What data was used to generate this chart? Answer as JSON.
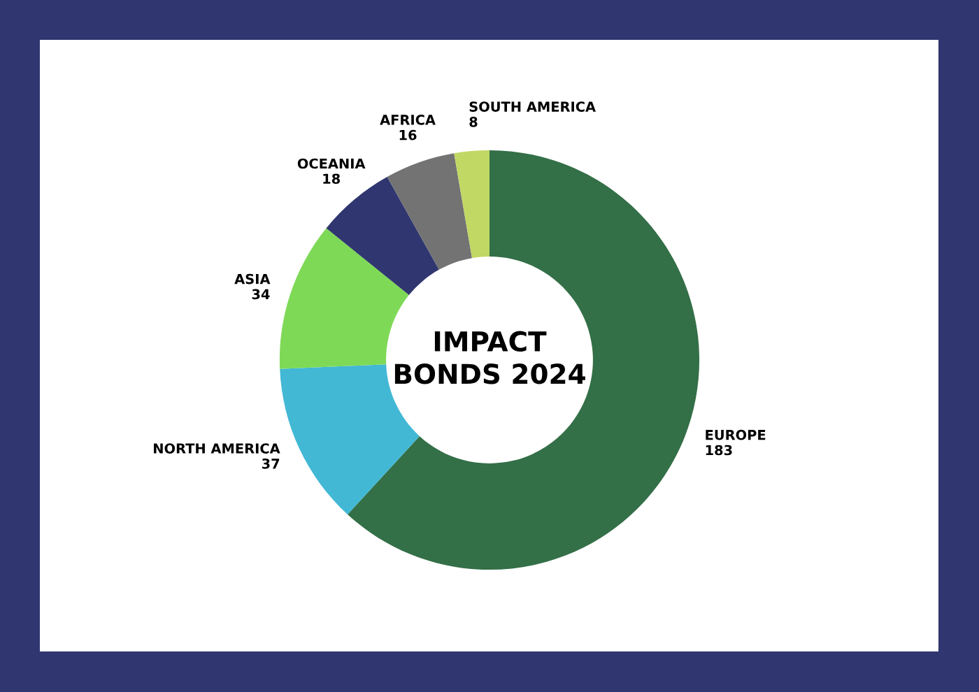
{
  "chart_data": {
    "type": "donut",
    "title": "IMPACT BONDS 2024",
    "categories": [
      "EUROPE",
      "NORTH AMERICA",
      "ASIA",
      "OCEANIA",
      "AFRICA",
      "SOUTH AMERICA"
    ],
    "values": [
      183,
      37,
      34,
      18,
      16,
      8
    ],
    "colors": [
      "#336f47",
      "#42b8d5",
      "#7ed957",
      "#30366f",
      "#737373",
      "#c1d865"
    ],
    "data_labels": true,
    "legend": false
  }
}
